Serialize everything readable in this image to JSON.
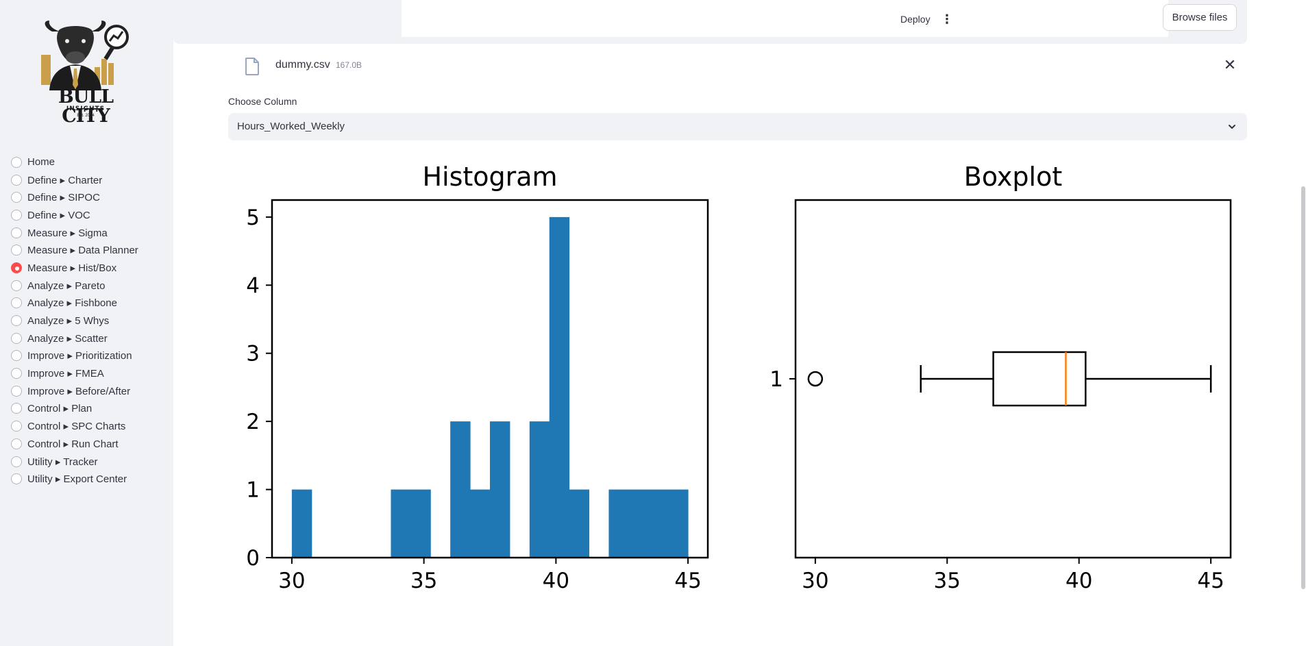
{
  "sidebar": {
    "logo": {
      "line1": "BULL CITY",
      "line2": "INSIGHTS",
      "line3": "Est. 2024"
    },
    "nav": [
      {
        "label": "Home",
        "selected": false
      },
      {
        "label": "Define ▸ Charter",
        "selected": false
      },
      {
        "label": "Define ▸ SIPOC",
        "selected": false
      },
      {
        "label": "Define ▸ VOC",
        "selected": false
      },
      {
        "label": "Measure ▸ Sigma",
        "selected": false
      },
      {
        "label": "Measure ▸ Data Planner",
        "selected": false
      },
      {
        "label": "Measure ▸ Hist/Box",
        "selected": true
      },
      {
        "label": "Analyze ▸ Pareto",
        "selected": false
      },
      {
        "label": "Analyze ▸ Fishbone",
        "selected": false
      },
      {
        "label": "Analyze ▸ 5 Whys",
        "selected": false
      },
      {
        "label": "Analyze ▸ Scatter",
        "selected": false
      },
      {
        "label": "Improve ▸ Prioritization",
        "selected": false
      },
      {
        "label": "Improve ▸ FMEA",
        "selected": false
      },
      {
        "label": "Improve ▸ Before/After",
        "selected": false
      },
      {
        "label": "Control ▸ Plan",
        "selected": false
      },
      {
        "label": "Control ▸ SPC Charts",
        "selected": false
      },
      {
        "label": "Control ▸ Run Chart",
        "selected": false
      },
      {
        "label": "Utility ▸ Tracker",
        "selected": false
      },
      {
        "label": "Utility ▸ Export Center",
        "selected": false
      }
    ]
  },
  "header": {
    "deploy": "Deploy",
    "menu_icon": "kebab-menu-icon"
  },
  "uploader": {
    "browse_label": "Browse files",
    "file_name": "dummy.csv",
    "file_size": "167.0B"
  },
  "column_select": {
    "label": "Choose Column",
    "value": "Hours_Worked_Weekly"
  },
  "colors": {
    "accent": "#ff4b4b",
    "bar": "#1f77b4",
    "median": "#ff7f0e"
  },
  "chart_data": [
    {
      "type": "bar",
      "title": "Histogram",
      "x_ticks": [
        30,
        35,
        40,
        45
      ],
      "y_ticks": [
        0,
        1,
        2,
        3,
        4,
        5
      ],
      "xlim": [
        29.25,
        45.75
      ],
      "ylim": [
        0,
        5.25
      ],
      "bins": [
        {
          "start": 30.0,
          "end": 30.75,
          "count": 1
        },
        {
          "start": 30.75,
          "end": 31.5,
          "count": 0
        },
        {
          "start": 31.5,
          "end": 32.25,
          "count": 0
        },
        {
          "start": 32.25,
          "end": 33.0,
          "count": 0
        },
        {
          "start": 33.0,
          "end": 33.75,
          "count": 0
        },
        {
          "start": 33.75,
          "end": 34.5,
          "count": 1
        },
        {
          "start": 34.5,
          "end": 35.25,
          "count": 1
        },
        {
          "start": 35.25,
          "end": 36.0,
          "count": 0
        },
        {
          "start": 36.0,
          "end": 36.75,
          "count": 2
        },
        {
          "start": 36.75,
          "end": 37.5,
          "count": 1
        },
        {
          "start": 37.5,
          "end": 38.25,
          "count": 2
        },
        {
          "start": 38.25,
          "end": 39.0,
          "count": 0
        },
        {
          "start": 39.0,
          "end": 39.75,
          "count": 2
        },
        {
          "start": 39.75,
          "end": 40.5,
          "count": 5
        },
        {
          "start": 40.5,
          "end": 41.25,
          "count": 1
        },
        {
          "start": 41.25,
          "end": 42.0,
          "count": 0
        },
        {
          "start": 42.0,
          "end": 42.75,
          "count": 1
        },
        {
          "start": 42.75,
          "end": 43.5,
          "count": 1
        },
        {
          "start": 43.5,
          "end": 44.25,
          "count": 1
        },
        {
          "start": 44.25,
          "end": 45.0,
          "count": 1
        }
      ]
    },
    {
      "type": "boxplot",
      "title": "Boxplot",
      "x_ticks": [
        30,
        35,
        40,
        45
      ],
      "y_ticks": [
        1
      ],
      "xlim": [
        29.25,
        45.75
      ],
      "box": {
        "whisker_low": 34,
        "q1": 36.75,
        "median": 39.5,
        "q3": 40.25,
        "whisker_high": 45,
        "outliers": [
          30
        ]
      }
    }
  ]
}
